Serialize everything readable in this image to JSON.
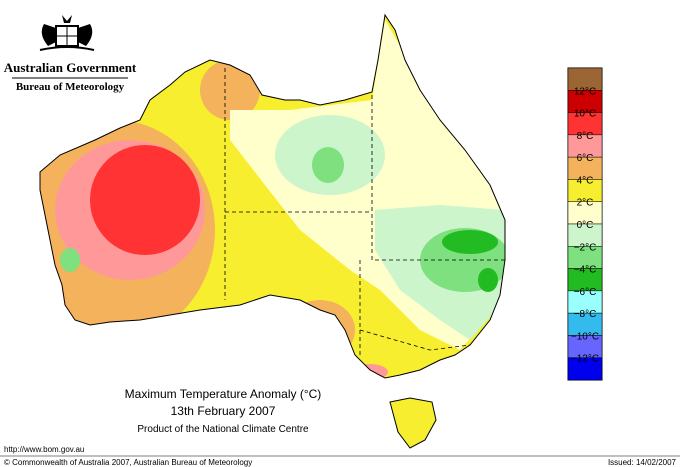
{
  "header": {
    "agency": "Australian Government",
    "bureau": "Bureau of Meteorology"
  },
  "map": {
    "title": "Maximum Temperature Anomaly (°C)",
    "date": "13th February 2007",
    "product": "Product of the National Climate Centre"
  },
  "legend": {
    "colors": [
      "#9c6634",
      "#cc0000",
      "#ff3333",
      "#ff9999",
      "#f4b25c",
      "#f6ee2e",
      "#ffffcc",
      "#ccf5cc",
      "#7ee07e",
      "#22bb22",
      "#99ffff",
      "#33bbee",
      "#6666ff",
      "#0000ee"
    ],
    "labels": [
      "12°C",
      "10°C",
      "8°C",
      "6°C",
      "4°C",
      "2°C",
      "0°C",
      "−2°C",
      "−4°C",
      "−6°C",
      "−8°C",
      "−10°C",
      "−12°C"
    ]
  },
  "footer": {
    "url": "http://www.bom.gov.au",
    "copyright": "© Commonwealth of Australia 2007, Australian Bureau of Meteorology",
    "issued": "Issued: 14/02/2007"
  }
}
